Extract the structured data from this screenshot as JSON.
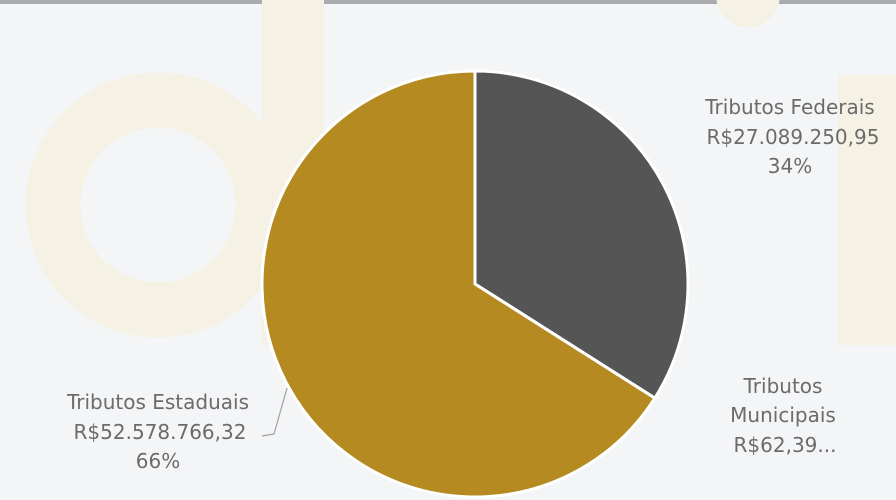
{
  "colors": {
    "background": "#f4f5f7",
    "watermark": "#f5f1e4",
    "slice_stroke": "#ffffff",
    "label_text": "#6b6b6b",
    "leader_line": "#a0a0a0"
  },
  "chart_data": {
    "type": "pie",
    "slices": [
      {
        "name": "Tributos Federais",
        "value": 27089250.95,
        "value_label": "R$27.089.250,95",
        "percent_label": "34%",
        "color": "#555555"
      },
      {
        "name": "Tributos Municipais",
        "value": 62.39,
        "value_label": "R$62,39...",
        "percent_label": "",
        "color": "#e0e0e0"
      },
      {
        "name": "Tributos Estaduais",
        "value": 52578766.32,
        "value_label": "R$52.578.766,32",
        "percent_label": "66%",
        "color": "#b48a21"
      }
    ],
    "start_angle": "12 o'clock",
    "direction": "clockwise",
    "legend": "none"
  }
}
